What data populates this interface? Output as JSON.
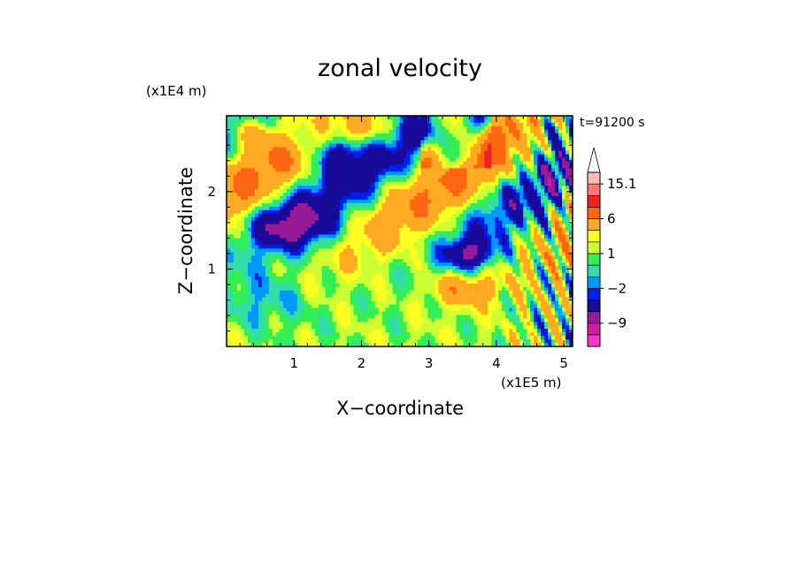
{
  "chart_data": {
    "type": "heatmap",
    "title": "zonal velocity",
    "xlabel": "X−coordinate",
    "ylabel": "Z−coordinate",
    "x_unit": "(x1E5 m)",
    "y_unit": "(x1E4 m)",
    "time_label": "t=91200 s",
    "xlim": [
      0,
      5.13
    ],
    "ylim": [
      0,
      2.98
    ],
    "x_ticks": [
      {
        "value": 1,
        "label": "1"
      },
      {
        "value": 2,
        "label": "2"
      },
      {
        "value": 3,
        "label": "3"
      },
      {
        "value": 4,
        "label": "4"
      },
      {
        "value": 5,
        "label": "5"
      }
    ],
    "y_ticks": [
      {
        "value": 1,
        "label": "1"
      },
      {
        "value": 2,
        "label": "2"
      }
    ],
    "colorbar": {
      "levels": [
        -15,
        -12,
        -9,
        -6,
        -3,
        -2,
        -1,
        0,
        1,
        2,
        3,
        6,
        9,
        12,
        15.1
      ],
      "labels": [
        "15.1",
        "6",
        "1",
        "−2",
        "−9"
      ],
      "label_values": [
        15.1,
        6,
        1,
        -2,
        -9
      ],
      "colors": [
        "#ff33cc",
        "#cc1fa6",
        "#991a99",
        "#1a0a99",
        "#0020e8",
        "#0099ff",
        "#33ddaa",
        "#33ee55",
        "#ccff33",
        "#ffff22",
        "#ffaa22",
        "#ff6611",
        "#ee2222",
        "#ff7777",
        "#ffbbbb"
      ],
      "extend_max": true
    }
  }
}
